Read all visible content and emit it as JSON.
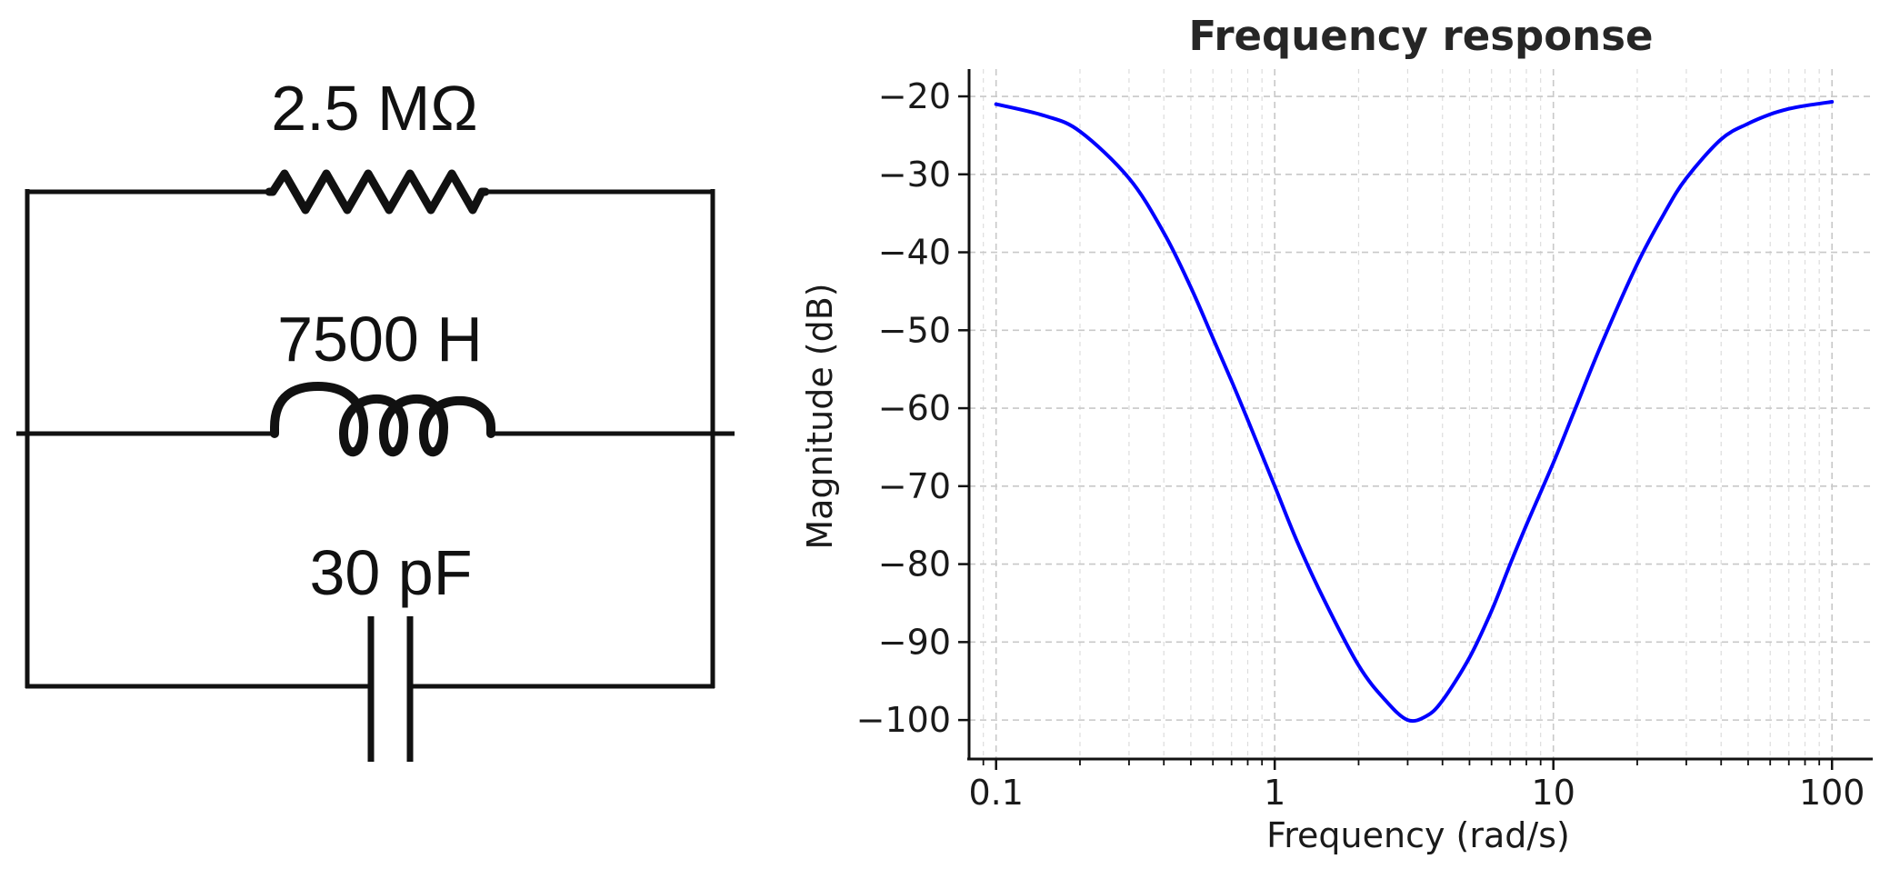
{
  "circuit": {
    "resistor_label": "2.5 MΩ",
    "inductor_label": "7500 H",
    "capacitor_label": "30 pF"
  },
  "chart_data": {
    "type": "line",
    "title": "Frequency response",
    "xlabel": "Frequency (rad/s)",
    "ylabel": "Magnitude (dB)",
    "xscale": "log",
    "xlim": [
      0.08,
      140
    ],
    "ylim": [
      -105,
      -16.5
    ],
    "x_ticks": [
      0.1,
      1,
      10,
      100
    ],
    "x_tick_labels": [
      "0.1",
      "1",
      "10",
      "100"
    ],
    "y_ticks": [
      -20,
      -30,
      -40,
      -50,
      -60,
      -70,
      -80,
      -90,
      -100
    ],
    "y_tick_labels": [
      "−20",
      "−30",
      "−40",
      "−50",
      "−60",
      "−70",
      "−80",
      "−90",
      "−100"
    ],
    "grid": true,
    "series": [
      {
        "color": "#0000ff",
        "x": [
          0.1,
          0.15,
          0.2,
          0.3,
          0.4,
          0.5,
          0.6,
          0.7,
          0.8,
          1.0,
          1.2,
          1.5,
          2.0,
          2.5,
          3.0,
          3.5,
          4.0,
          5.0,
          6.0,
          7.0,
          8.0,
          10,
          12,
          15,
          20,
          25,
          30,
          40,
          50,
          60,
          70,
          80,
          100
        ],
        "y": [
          -21,
          -22.5,
          -24.5,
          -30.5,
          -37.5,
          -44.5,
          -51,
          -56.5,
          -61.5,
          -70,
          -77,
          -84.5,
          -93,
          -97.5,
          -100,
          -99.5,
          -97.5,
          -92,
          -86,
          -80,
          -75,
          -67,
          -60,
          -51.5,
          -41.5,
          -35,
          -30.5,
          -25.5,
          -23.5,
          -22.3,
          -21.6,
          -21.2,
          -20.7
        ]
      }
    ]
  }
}
